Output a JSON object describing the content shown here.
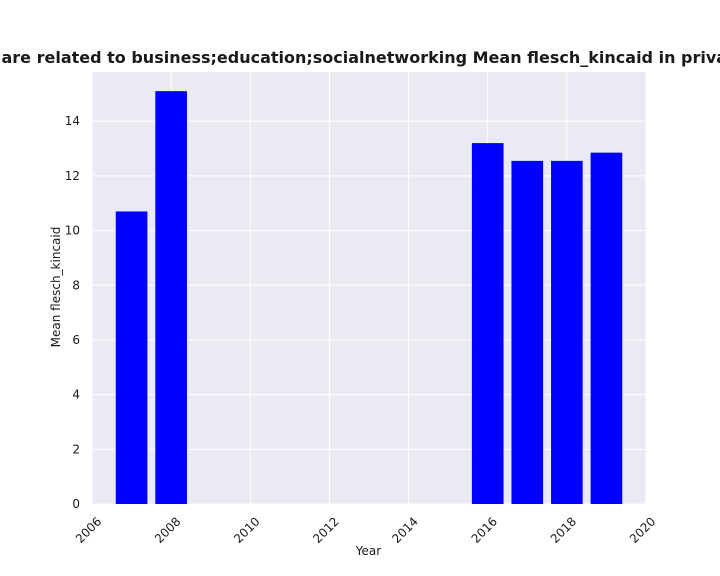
{
  "chart_data": {
    "type": "bar",
    "title": "Categories are related to business;education;socialnetworking Mean flesch_kincaid in privacy policies",
    "xlabel": "Year",
    "ylabel": "Mean flesch_kincaid",
    "x": [
      2007,
      2008,
      2016,
      2017,
      2018,
      2019
    ],
    "values": [
      10.7,
      15.1,
      13.2,
      12.55,
      12.55,
      12.85
    ],
    "xlim": [
      2006,
      2020
    ],
    "ylim": [
      0,
      15.8
    ],
    "xticks": [
      2006,
      2008,
      2010,
      2012,
      2014,
      2016,
      2018,
      2020
    ],
    "yticks": [
      0,
      2,
      4,
      6,
      8,
      10,
      12,
      14
    ],
    "bar_width_years": 0.8,
    "grid": true,
    "colors": {
      "bar": "#0000ff",
      "plot_bg": "#eaeaf2",
      "grid": "#ffffff"
    }
  }
}
